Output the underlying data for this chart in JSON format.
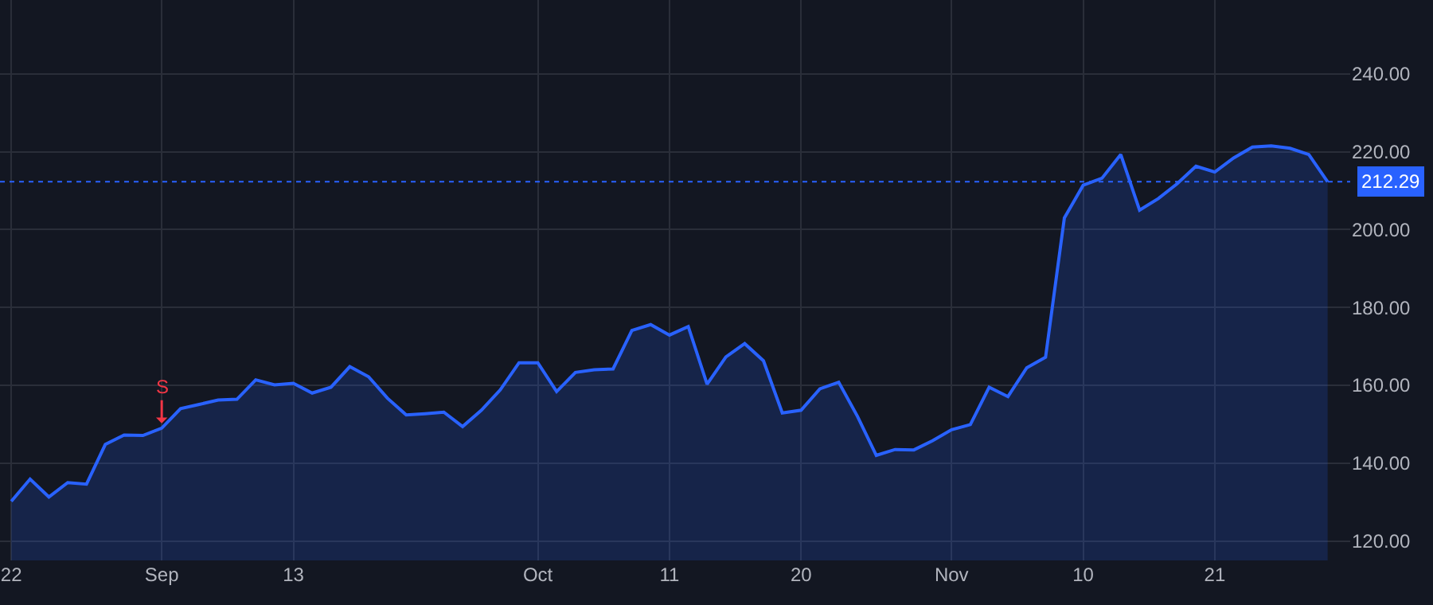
{
  "chart_data": {
    "type": "area",
    "categories": [
      "22",
      null,
      null,
      null,
      null,
      null,
      null,
      null,
      "Sep",
      null,
      null,
      null,
      null,
      null,
      null,
      "13",
      null,
      null,
      null,
      null,
      null,
      null,
      null,
      null,
      null,
      null,
      null,
      null,
      "Oct",
      null,
      null,
      null,
      null,
      null,
      null,
      "11",
      null,
      null,
      null,
      null,
      null,
      null,
      "20",
      null,
      null,
      null,
      null,
      null,
      null,
      null,
      "Nov",
      null,
      null,
      null,
      null,
      null,
      null,
      "10",
      null,
      null,
      null,
      null,
      null,
      null,
      "21",
      null,
      null,
      null,
      null,
      null,
      null
    ],
    "series": [
      {
        "color": "#2962ff",
        "values": [
          130.2,
          135.9,
          131.3,
          135.0,
          134.6,
          144.8,
          147.2,
          147.1,
          149.0,
          154.0,
          155.1,
          156.2,
          156.4,
          161.4,
          160.1,
          160.5,
          158.0,
          159.5,
          164.8,
          162.2,
          156.7,
          152.4,
          152.7,
          153.1,
          149.4,
          153.6,
          158.8,
          165.8,
          165.8,
          158.4,
          163.3,
          164.0,
          164.2,
          174.1,
          175.6,
          172.9,
          175.1,
          160.3,
          167.3,
          170.7,
          166.3,
          152.9,
          153.6,
          159.1,
          160.8,
          152.0,
          142.0,
          143.5,
          143.4,
          145.8,
          148.6,
          149.9,
          159.5,
          157.1,
          164.5,
          167.2,
          203.0,
          211.4,
          213.2,
          219.3,
          205.0,
          208.0,
          211.8,
          216.3,
          214.8,
          218.4,
          221.2,
          221.5,
          220.9,
          219.3,
          212.3
        ]
      }
    ],
    "ylim": [
      115,
      259
    ],
    "yticks": [
      {
        "value": 120,
        "label": "120.00"
      },
      {
        "value": 140,
        "label": "140.00"
      },
      {
        "value": 160,
        "label": "160.00"
      },
      {
        "value": 180,
        "label": "180.00"
      },
      {
        "value": 200,
        "label": "200.00"
      },
      {
        "value": 220,
        "label": "220.00"
      },
      {
        "value": 240,
        "label": "240.00"
      }
    ],
    "ref_lines": [
      {
        "axis": "y",
        "value": 212.29,
        "label": "212.29",
        "color": "#2962ff",
        "line_style": "dotted"
      }
    ],
    "annotations": [
      {
        "text": "S",
        "x": "Sep",
        "y": 149.0
      }
    ],
    "grid": true
  }
}
